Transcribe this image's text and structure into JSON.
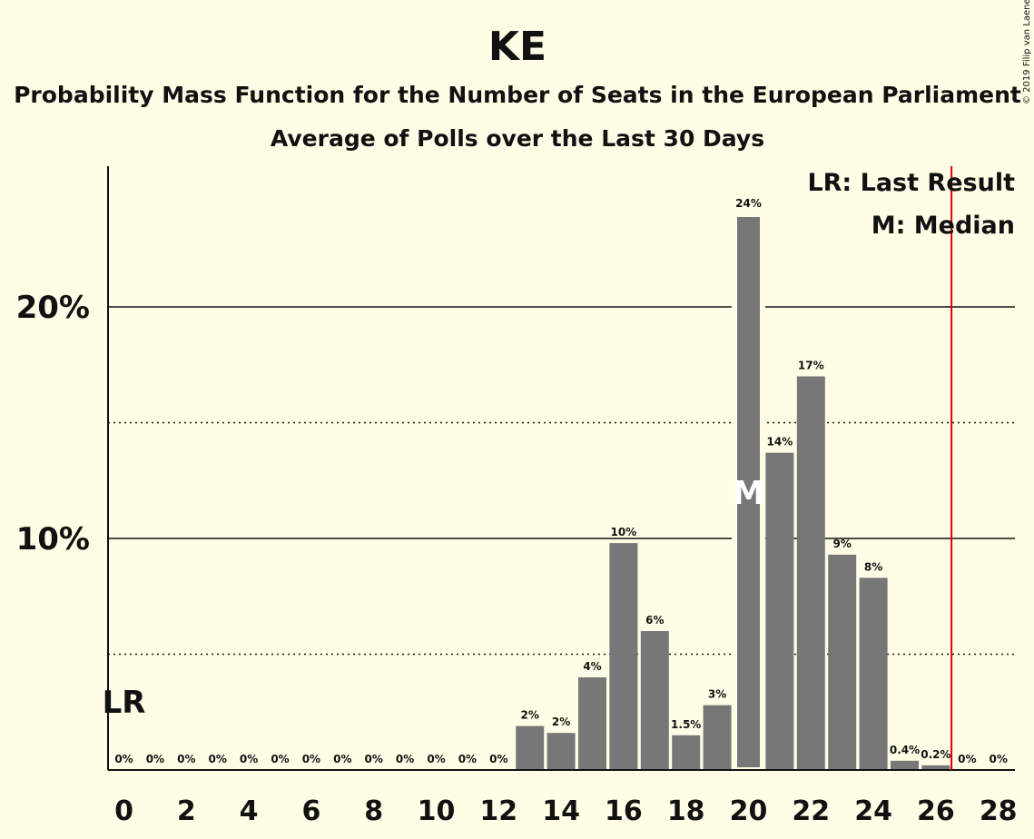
{
  "chart_data": {
    "type": "bar",
    "title": "KE",
    "subtitle1": "Probability Mass Function for the Number of Seats in the European Parliament",
    "subtitle2": "Average of Polls over the Last 30 Days",
    "credit": "© 2019 Filip van Laenen",
    "categories": [
      0,
      1,
      2,
      3,
      4,
      5,
      6,
      7,
      8,
      9,
      10,
      11,
      12,
      13,
      14,
      15,
      16,
      17,
      18,
      19,
      20,
      21,
      22,
      23,
      24,
      25,
      26,
      27,
      28
    ],
    "values": [
      0,
      0,
      0,
      0,
      0,
      0,
      0,
      0,
      0,
      0,
      0,
      0,
      0,
      1.9,
      1.6,
      4.0,
      9.8,
      6.0,
      1.5,
      2.8,
      24.0,
      13.7,
      17.0,
      9.3,
      8.3,
      0.4,
      0.2,
      0,
      0
    ],
    "data_labels": [
      "0%",
      "0%",
      "0%",
      "0%",
      "0%",
      "0%",
      "0%",
      "0%",
      "0%",
      "0%",
      "0%",
      "0%",
      "0%",
      "2%",
      "2%",
      "4%",
      "10%",
      "6%",
      "1.5%",
      "3%",
      "24%",
      "14%",
      "17%",
      "9%",
      "8%",
      "0.4%",
      "0.2%",
      "0%",
      "0%"
    ],
    "x_tick_labels": [
      "0",
      "2",
      "4",
      "6",
      "8",
      "10",
      "12",
      "14",
      "16",
      "18",
      "20",
      "22",
      "24",
      "26",
      "28"
    ],
    "y_tick_labels": [
      "10%",
      "20%"
    ],
    "ylim": [
      0,
      26
    ],
    "last_result": 0,
    "median": 20,
    "majority_line": 26.5,
    "lr_label": "LR",
    "median_label": "M",
    "legend": [
      "LR: Last Result",
      "M: Median"
    ],
    "colors": {
      "background": "#FFFDE6",
      "bar": "#777777",
      "majority_line": "#E00000",
      "text": "#111111"
    }
  }
}
